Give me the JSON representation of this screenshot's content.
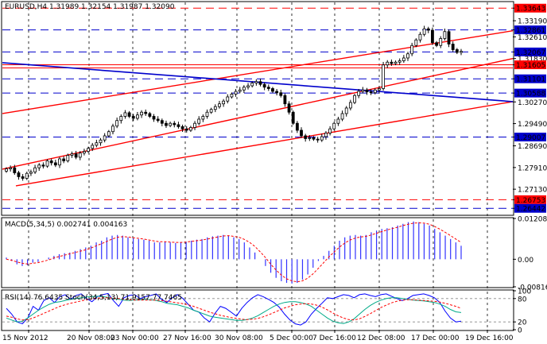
{
  "header": {
    "symbol_ohlc": "EURUSD,H4  1.31989 1.32154 1.31987 1.32090"
  },
  "colors": {
    "background": "#ffffff",
    "frame": "#000000",
    "candle_up": "#ffffff",
    "candle_down": "#000000",
    "candle_outline": "#000000",
    "resistance_support": "#ff0000",
    "trend_channel": "#ff0000",
    "trend_blue": "#0000cc",
    "blue_dashed_levels": "#0000cc",
    "macd_bars": "#3333ff",
    "macd_signal": "#ff0000",
    "rsi_line": "#0000ff",
    "stoch_main": "#00aa88",
    "stoch_signal": "#ff0000",
    "price_marker_red": "#ff0000",
    "price_marker_blue": "#0000cc",
    "grid_v": "#000000"
  },
  "chart_data": [
    {
      "type": "candlestick",
      "title": "EURUSD,H4  1.31989 1.32154 1.31987 1.32090",
      "ylim": [
        1.2622,
        1.3385
      ],
      "y_ticks": [
        "1.33643",
        "1.33190",
        "1.32861",
        "1.32610",
        "1.32067",
        "1.31830",
        "1.31605",
        "1.31101",
        "1.30588",
        "1.30270",
        "1.29490",
        "1.29007",
        "1.28690",
        "1.27910",
        "1.27130",
        "1.26753",
        "1.26442"
      ],
      "x_ticks": [
        "15 Nov 2012",
        "20 Nov 08:00",
        "23 Nov 00:00",
        "27 Nov 16:00",
        "30 Nov 08:00",
        "5 Dec 00:00",
        "7 Dec 16:00",
        "12 Dec 08:00",
        "17 Dec 00:00",
        "19 Dec 16:00"
      ],
      "horizontal_levels": [
        {
          "value": 1.33643,
          "label": "1.33643",
          "style": "dashed",
          "color": "red"
        },
        {
          "value": 1.32861,
          "label": "1.32861",
          "style": "dashed",
          "color": "blue"
        },
        {
          "value": 1.32067,
          "label": "1.32067",
          "style": "dashed",
          "color": "blue"
        },
        {
          "value": 1.31605,
          "label": "1.31605",
          "style": "solid",
          "color": "red"
        },
        {
          "value": 1.31101,
          "label": "1.31101",
          "style": "dashed",
          "color": "blue"
        },
        {
          "value": 1.30588,
          "label": "1.30588",
          "style": "dashed",
          "color": "blue"
        },
        {
          "value": 1.29007,
          "label": "1.29007",
          "style": "dashed",
          "color": "blue"
        },
        {
          "value": 1.26753,
          "label": "1.26753",
          "style": "dashed",
          "color": "red"
        },
        {
          "value": 1.26442,
          "label": "1.26442",
          "style": "dashed",
          "color": "blue"
        }
      ],
      "price_markers": [
        {
          "label": "1.33643",
          "color": "red"
        },
        {
          "label": "1.32861",
          "color": "blue"
        },
        {
          "label": "1.32067",
          "color": "blue"
        },
        {
          "label": "1.31830",
          "color": "none"
        },
        {
          "label": "1.31605",
          "color": "red"
        },
        {
          "label": "1.31101",
          "color": "blue"
        },
        {
          "label": "1.30588",
          "color": "blue"
        },
        {
          "label": "1.29007",
          "color": "blue"
        },
        {
          "label": "1.26753",
          "color": "red"
        },
        {
          "label": "1.26442",
          "color": "blue"
        }
      ],
      "candles_close": [
        1.2786,
        1.279,
        1.2772,
        1.2758,
        1.2752,
        1.277,
        1.2775,
        1.279,
        1.28,
        1.2796,
        1.2815,
        1.2808,
        1.28,
        1.2822,
        1.2815,
        1.2835,
        1.284,
        1.2828,
        1.2843,
        1.2849,
        1.286,
        1.2871,
        1.288,
        1.289,
        1.2905,
        1.292,
        1.294,
        1.296,
        1.2975,
        1.2988,
        1.2975,
        1.2968,
        1.298,
        1.299,
        1.2985,
        1.2975,
        1.2965,
        1.296,
        1.295,
        1.2942,
        1.295,
        1.2945,
        1.2938,
        1.293,
        1.2925,
        1.2935,
        1.295,
        1.2965,
        1.2975,
        1.299,
        1.3,
        1.301,
        1.302,
        1.303,
        1.3045,
        1.3055,
        1.3065,
        1.307,
        1.308,
        1.3085,
        1.3095,
        1.31,
        1.309,
        1.308,
        1.3075,
        1.3065,
        1.306,
        1.305,
        1.302,
        1.299,
        1.295,
        1.2925,
        1.2905,
        1.2895,
        1.2898,
        1.2893,
        1.289,
        1.2902,
        1.2915,
        1.293,
        1.295,
        1.2965,
        1.2985,
        1.3005,
        1.3025,
        1.305,
        1.3065,
        1.307,
        1.3063,
        1.306,
        1.307,
        1.3075,
        1.316,
        1.317,
        1.3165,
        1.317,
        1.3175,
        1.3185,
        1.32,
        1.323,
        1.325,
        1.327,
        1.329,
        1.3285,
        1.324,
        1.323,
        1.3255,
        1.328,
        1.3235,
        1.3215,
        1.3205,
        1.3209
      ]
    },
    {
      "type": "bar",
      "title": "MACD(5,34,5) 0.002741 0.004163",
      "y_ticks": [
        "0.012086",
        "0.00",
        "-0.00816"
      ],
      "series": [
        {
          "name": "MACD",
          "values": [
            0.0005,
            -0.0005,
            -0.0015,
            -0.002,
            -0.0018,
            -0.001,
            -0.0008,
            0.0,
            0.0005,
            0.001,
            0.0015,
            0.0018,
            0.002,
            0.0025,
            0.003,
            0.0035,
            0.004,
            0.005,
            0.0055,
            0.0065,
            0.007,
            0.0072,
            0.007,
            0.0065,
            0.0062,
            0.006,
            0.0058,
            0.0055,
            0.005,
            0.005,
            0.0052,
            0.005,
            0.0048,
            0.005,
            0.0052,
            0.0055,
            0.0058,
            0.006,
            0.0065,
            0.0068,
            0.007,
            0.0072,
            0.007,
            0.0065,
            0.006,
            0.005,
            0.0035,
            0.002,
            0.0,
            -0.002,
            -0.004,
            -0.0055,
            -0.0065,
            -0.007,
            -0.0072,
            -0.007,
            -0.006,
            -0.0045,
            -0.0025,
            -0.0005,
            0.001,
            0.0025,
            0.004,
            0.0055,
            0.0065,
            0.007,
            0.0072,
            0.007,
            0.0072,
            0.008,
            0.0085,
            0.009,
            0.0092,
            0.0095,
            0.01,
            0.0105,
            0.011,
            0.0112,
            0.011,
            0.0105,
            0.01,
            0.009,
            0.008,
            0.007,
            0.006,
            0.005,
            0.004
          ]
        },
        {
          "name": "Signal",
          "values": [
            0.0,
            -0.0003,
            -0.0008,
            -0.0012,
            -0.0014,
            -0.0012,
            -0.001,
            -0.0006,
            -0.0002,
            0.0004,
            0.0008,
            0.0012,
            0.0016,
            0.002,
            0.0024,
            0.0028,
            0.0033,
            0.004,
            0.0046,
            0.0053,
            0.006,
            0.0065,
            0.0067,
            0.0066,
            0.0064,
            0.0062,
            0.006,
            0.0057,
            0.0054,
            0.0052,
            0.0052,
            0.0051,
            0.005,
            0.005,
            0.0051,
            0.0053,
            0.0055,
            0.0057,
            0.006,
            0.0063,
            0.0066,
            0.0069,
            0.007,
            0.0068,
            0.0065,
            0.0059,
            0.005,
            0.0038,
            0.0022,
            0.0005,
            -0.0015,
            -0.0032,
            -0.0047,
            -0.0058,
            -0.0064,
            -0.0067,
            -0.0064,
            -0.0056,
            -0.0043,
            -0.0027,
            -0.001,
            0.0007,
            0.0022,
            0.0036,
            0.0048,
            0.0057,
            0.0063,
            0.0066,
            0.0068,
            0.0072,
            0.0077,
            0.0082,
            0.0087,
            0.0091,
            0.0095,
            0.01,
            0.0104,
            0.0107,
            0.0108,
            0.0107,
            0.0104,
            0.0097,
            0.0089,
            0.008,
            0.007,
            0.006,
            0.005
          ]
        }
      ]
    },
    {
      "type": "line",
      "title": "RSI(14) 76.6435 Stoch(34,5,13) 71.9157 77.7465",
      "y_ticks": [
        "100",
        "80",
        "20",
        "0"
      ],
      "series": [
        {
          "name": "RSI",
          "values": [
            55,
            40,
            20,
            15,
            30,
            60,
            50,
            75,
            82,
            70,
            85,
            90,
            78,
            88,
            92,
            80,
            72,
            85,
            90,
            93,
            75,
            60,
            82,
            88,
            90,
            80,
            85,
            88,
            92,
            78,
            70,
            82,
            90,
            80,
            65,
            50,
            45,
            30,
            20,
            42,
            60,
            55,
            45,
            35,
            55,
            70,
            82,
            90,
            85,
            78,
            70,
            58,
            40,
            25,
            15,
            12,
            20,
            40,
            55,
            68,
            82,
            80,
            85,
            90,
            88,
            82,
            90,
            92,
            88,
            85,
            90,
            92,
            86,
            80,
            75,
            80,
            88,
            90,
            92,
            88,
            82,
            70,
            48,
            30,
            20,
            22
          ]
        },
        {
          "name": "Stoch main",
          "values": [
            30,
            25,
            20,
            22,
            30,
            40,
            50,
            58,
            65,
            70,
            72,
            75,
            78,
            80,
            82,
            84,
            85,
            86,
            85,
            83,
            80,
            78,
            76,
            75,
            76,
            77,
            78,
            77,
            75,
            72,
            68,
            66,
            64,
            60,
            56,
            50,
            45,
            40,
            35,
            32,
            30,
            28,
            26,
            24,
            24,
            26,
            30,
            36,
            44,
            52,
            60,
            66,
            70,
            72,
            72,
            70,
            66,
            60,
            50,
            40,
            30,
            22,
            18,
            16,
            20,
            28,
            40,
            52,
            62,
            70,
            76,
            80,
            82,
            82,
            80,
            78,
            76,
            75,
            74,
            72,
            70,
            66,
            60,
            52,
            46,
            44
          ]
        },
        {
          "name": "Stoch signal",
          "values": [
            35,
            32,
            28,
            25,
            26,
            30,
            36,
            42,
            48,
            54,
            60,
            64,
            68,
            71,
            74,
            77,
            79,
            81,
            82,
            82,
            81,
            80,
            78,
            77,
            76,
            76,
            76,
            76,
            76,
            75,
            73,
            71,
            69,
            67,
            64,
            60,
            55,
            50,
            45,
            41,
            37,
            34,
            31,
            29,
            27,
            26,
            27,
            29,
            33,
            38,
            44,
            50,
            56,
            60,
            64,
            66,
            67,
            66,
            63,
            58,
            51,
            43,
            36,
            30,
            26,
            25,
            28,
            34,
            41,
            49,
            57,
            63,
            69,
            73,
            76,
            77,
            77,
            76,
            75,
            74,
            73,
            71,
            68,
            64,
            60,
            55
          ]
        }
      ]
    }
  ]
}
